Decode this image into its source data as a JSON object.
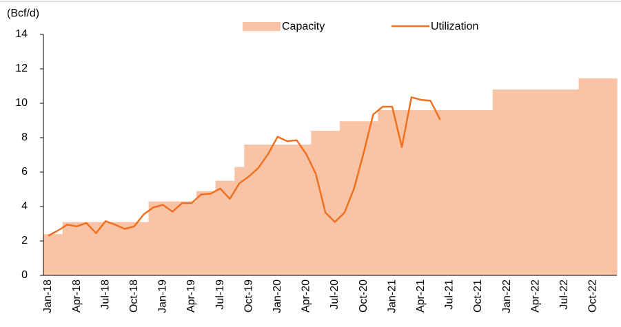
{
  "chart_data": {
    "type": "area_line",
    "y_label": "(Bcf/d)",
    "categories": [
      "Jan-18",
      null,
      null,
      "Apr-18",
      null,
      null,
      "Jul-18",
      null,
      null,
      "Oct-18",
      null,
      null,
      "Jan-19",
      null,
      null,
      "Apr-19",
      null,
      null,
      "Jul-19",
      null,
      null,
      "Oct-19",
      null,
      null,
      "Jan-20",
      null,
      null,
      "Apr-20",
      null,
      null,
      "Jul-20",
      null,
      null,
      "Oct-20",
      null,
      null,
      "Jan-21",
      null,
      null,
      "Apr-21",
      null,
      null,
      "Jul-21",
      null,
      null,
      "Oct-21",
      null,
      null,
      "Jan-22",
      null,
      null,
      "Apr-22",
      null,
      null,
      "Jul-22",
      null,
      null,
      "Oct-22",
      null,
      null
    ],
    "series": [
      {
        "name": "Capacity",
        "kind": "area",
        "color": "#f9c4a5",
        "values": [
          2.4,
          2.4,
          3.1,
          3.1,
          3.1,
          3.1,
          3.1,
          3.1,
          3.1,
          3.1,
          3.1,
          4.3,
          4.3,
          4.3,
          4.3,
          4.3,
          4.9,
          4.9,
          5.5,
          5.5,
          6.3,
          7.6,
          7.6,
          7.6,
          7.6,
          7.6,
          7.6,
          7.6,
          8.4,
          8.4,
          8.4,
          8.95,
          8.95,
          8.95,
          8.95,
          9.6,
          9.6,
          9.6,
          9.6,
          9.6,
          9.6,
          9.6,
          9.6,
          9.6,
          9.6,
          9.6,
          9.6,
          10.8,
          10.8,
          10.8,
          10.8,
          10.8,
          10.8,
          10.8,
          10.8,
          10.8,
          11.45,
          11.45,
          11.45,
          11.45
        ]
      },
      {
        "name": "Utilization",
        "kind": "line",
        "color": "#f07022",
        "values": [
          2.3,
          2.6,
          2.95,
          2.85,
          3.05,
          2.45,
          3.15,
          2.95,
          2.7,
          2.85,
          3.55,
          3.95,
          4.1,
          3.7,
          4.2,
          4.2,
          4.7,
          4.75,
          5.05,
          4.45,
          5.35,
          5.75,
          6.25,
          7.05,
          8.05,
          7.8,
          7.85,
          7.05,
          5.9,
          3.65,
          3.1,
          3.65,
          5.05,
          7.1,
          9.35,
          9.8,
          9.8,
          7.45,
          10.35,
          10.2,
          10.15,
          9.05,
          null,
          null,
          null,
          null,
          null,
          null,
          null,
          null,
          null,
          null,
          null,
          null,
          null,
          null,
          null,
          null,
          null,
          null
        ]
      }
    ],
    "ylim": [
      0,
      14
    ],
    "yticks": [
      0,
      2,
      4,
      6,
      8,
      10,
      12,
      14
    ]
  }
}
